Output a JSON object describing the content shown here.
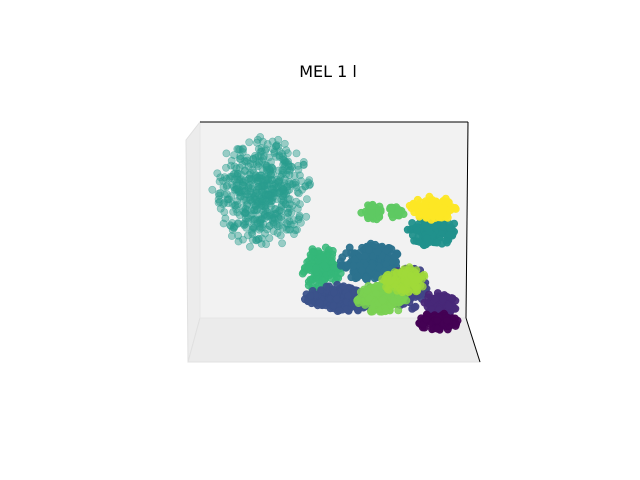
{
  "chart_data": {
    "type": "scatter",
    "title": "MEL 1 l",
    "xlabel": "",
    "ylabel": "",
    "zlabel": "",
    "projection": "3d",
    "grid": false,
    "legend": "none",
    "clusters": [
      {
        "color": "#2a9d8f",
        "alpha": 0.45,
        "cx": 262,
        "cy": 192,
        "rx": 50,
        "ry": 58,
        "n": 520
      },
      {
        "color": "#35b779",
        "alpha": 0.85,
        "cx": 322,
        "cy": 268,
        "rx": 20,
        "ry": 24,
        "n": 160
      },
      {
        "color": "#2c728e",
        "alpha": 0.95,
        "cx": 370,
        "cy": 262,
        "rx": 30,
        "ry": 20,
        "n": 220
      },
      {
        "color": "#21918c",
        "alpha": 0.95,
        "cx": 432,
        "cy": 230,
        "rx": 26,
        "ry": 16,
        "n": 180
      },
      {
        "color": "#fde725",
        "alpha": 0.95,
        "cx": 433,
        "cy": 208,
        "rx": 26,
        "ry": 12,
        "n": 130
      },
      {
        "color": "#5ec962",
        "alpha": 0.95,
        "cx": 372,
        "cy": 212,
        "rx": 11,
        "ry": 10,
        "n": 50
      },
      {
        "color": "#5ec962",
        "alpha": 0.95,
        "cx": 396,
        "cy": 212,
        "rx": 8,
        "ry": 7,
        "n": 30
      },
      {
        "color": "#3b528b",
        "alpha": 0.95,
        "cx": 346,
        "cy": 298,
        "rx": 42,
        "ry": 14,
        "n": 260
      },
      {
        "color": "#414487",
        "alpha": 0.95,
        "cx": 408,
        "cy": 288,
        "rx": 22,
        "ry": 22,
        "n": 150
      },
      {
        "color": "#7ad151",
        "alpha": 0.85,
        "cx": 382,
        "cy": 298,
        "rx": 26,
        "ry": 16,
        "n": 200
      },
      {
        "color": "#a0da39",
        "alpha": 0.75,
        "cx": 404,
        "cy": 280,
        "rx": 22,
        "ry": 14,
        "n": 120
      },
      {
        "color": "#482878",
        "alpha": 0.95,
        "cx": 440,
        "cy": 305,
        "rx": 18,
        "ry": 14,
        "n": 120
      },
      {
        "color": "#440154",
        "alpha": 0.95,
        "cx": 438,
        "cy": 322,
        "rx": 20,
        "ry": 10,
        "n": 110
      }
    ]
  }
}
